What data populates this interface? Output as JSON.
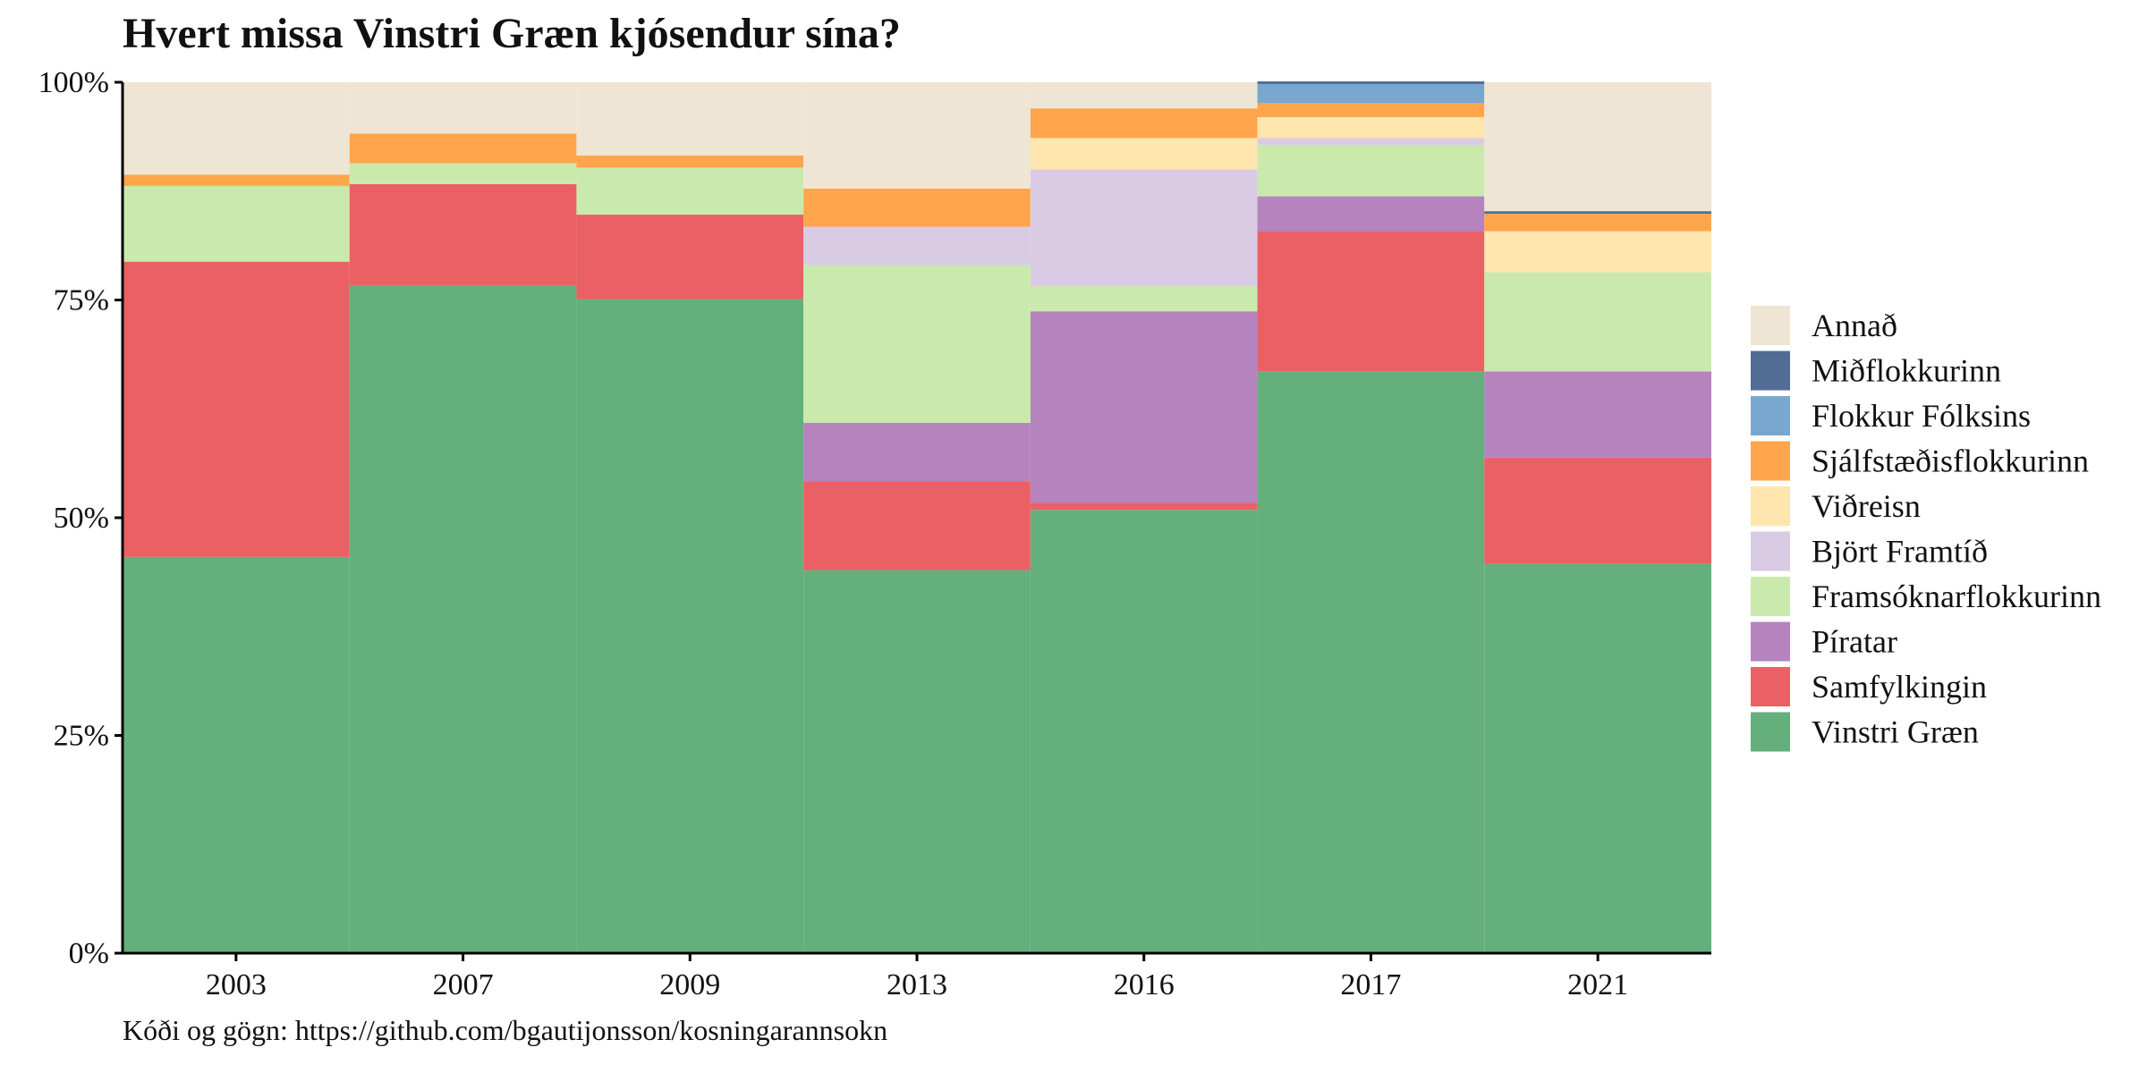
{
  "chart_data": {
    "type": "bar",
    "stacked": true,
    "title": "Hvert missa Vinstri Græn kjósendur sína?",
    "caption": "Kóði og gögn: https://github.com/bgautijonsson/kosningarannsokn",
    "xlabel": "",
    "ylabel": "",
    "ylim": [
      0,
      1
    ],
    "y_ticks": [
      "0%",
      "25%",
      "50%",
      "75%",
      "100%"
    ],
    "y_tick_values": [
      0,
      0.25,
      0.5,
      0.75,
      1
    ],
    "categories": [
      "2003",
      "2007",
      "2009",
      "2013",
      "2016",
      "2017",
      "2021"
    ],
    "legend_position": "right",
    "grid": false,
    "series": [
      {
        "name": "Vinstri Græn",
        "color": "#64AF7C",
        "values": [
          0.455,
          0.767,
          0.751,
          0.44,
          0.509,
          0.668,
          0.447
        ]
      },
      {
        "name": "Samfylkingin",
        "color": "#EB6064",
        "values": [
          0.339,
          0.116,
          0.097,
          0.102,
          0.008,
          0.161,
          0.122
        ]
      },
      {
        "name": "Píratar",
        "color": "#B583BD",
        "values": [
          0,
          0,
          0,
          0.067,
          0.22,
          0.04,
          0.099
        ]
      },
      {
        "name": "Framsóknarflokkurinn",
        "color": "#CAE9AD",
        "values": [
          0.087,
          0.024,
          0.054,
          0.181,
          0.029,
          0.059,
          0.114
        ]
      },
      {
        "name": "Björt Framtíð",
        "color": "#D9CBE4",
        "values": [
          0,
          0,
          0,
          0.044,
          0.134,
          0.008,
          0
        ]
      },
      {
        "name": "Viðreisn",
        "color": "#FFE5AE",
        "values": [
          0,
          0,
          0,
          0,
          0.036,
          0.024,
          0.047
        ]
      },
      {
        "name": "Sjálfstæðisflokkurinn",
        "color": "#FFA54B",
        "values": [
          0.013,
          0.034,
          0.014,
          0.044,
          0.034,
          0.016,
          0.02
        ]
      },
      {
        "name": "Flokkur Fólksins",
        "color": "#78A7D0",
        "values": [
          0,
          0,
          0,
          0,
          0,
          0.022,
          0
        ]
      },
      {
        "name": "Miðflokkurinn",
        "color": "#536C96",
        "values": [
          0,
          0,
          0,
          0,
          0,
          0.003,
          0.003
        ]
      },
      {
        "name": "Annað",
        "color": "#EEE5D5",
        "values": [
          0.106,
          0.059,
          0.084,
          0.122,
          0.03,
          0,
          0.148
        ]
      }
    ],
    "legend_order": [
      "Annað",
      "Miðflokkurinn",
      "Flokkur Fólksins",
      "Sjálfstæðisflokkurinn",
      "Viðreisn",
      "Björt Framtíð",
      "Framsóknarflokkurinn",
      "Píratar",
      "Samfylkingin",
      "Vinstri Græn"
    ]
  }
}
